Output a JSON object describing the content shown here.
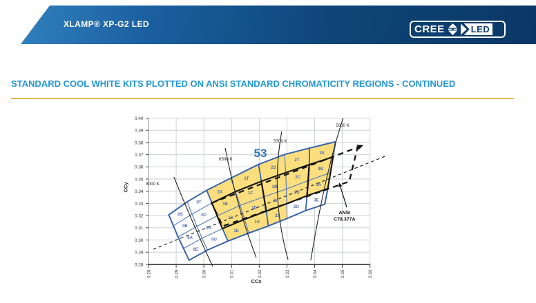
{
  "header": {
    "product": "XLAMP® XP-G2 LED",
    "logo": {
      "cree": "CREE",
      "led": "LED",
      "registered": "®"
    }
  },
  "section": {
    "title": "STANDARD COOL WHITE KITS PLOTTED ON ANSI STANDARD CHROMATICITY REGIONS - CONTINUED"
  },
  "chart_data": {
    "type": "chromaticity-bin-map",
    "xlabel": "CCx",
    "ylabel": "CCy",
    "xlim": [
      0.28,
      0.36
    ],
    "ylim": [
      0.28,
      0.4
    ],
    "xticks": [
      0.28,
      0.29,
      0.3,
      0.31,
      0.32,
      0.33,
      0.34,
      0.35,
      0.36
    ],
    "yticks": [
      0.28,
      0.29,
      0.3,
      0.31,
      0.32,
      0.33,
      0.34,
      0.35,
      0.36,
      0.37,
      0.38,
      0.39,
      0.4
    ],
    "grid": true,
    "kit_label": "53",
    "kit_label_pos": [
      0.3204,
      0.3715
    ],
    "kit_highlight_color": "#FBDE7E",
    "colors": {
      "grid": "#cdd1d6",
      "bin_grid": "#5d7fbe",
      "bin_grid_bold": "#3a64ad",
      "ansi_solid": "#161616",
      "kit_number": "#2e74b8",
      "bin_label": "#4f68a6",
      "title_blue": "#2196d3",
      "gold_rule": "#ddb84a"
    },
    "bin_columns": 7,
    "bin_rows": 4,
    "bins": [
      {
        "code": "0S",
        "ccx": 0.2915,
        "ccy": 0.3212,
        "in_kit": false
      },
      {
        "code": "0B",
        "ccx": 0.2932,
        "ccy": 0.3116,
        "in_kit": false
      },
      {
        "code": "0A",
        "ccx": 0.295,
        "ccy": 0.302,
        "in_kit": false
      },
      {
        "code": "0E",
        "ccx": 0.297,
        "ccy": 0.2924,
        "in_kit": false
      },
      {
        "code": "0T",
        "ccx": 0.2982,
        "ccy": 0.3313,
        "in_kit": false
      },
      {
        "code": "0C",
        "ccx": 0.3,
        "ccy": 0.3206,
        "in_kit": false
      },
      {
        "code": "0D",
        "ccx": 0.3017,
        "ccy": 0.3104,
        "in_kit": false
      },
      {
        "code": "0U",
        "ccx": 0.3037,
        "ccy": 0.3008,
        "in_kit": false
      },
      {
        "code": "1S",
        "ccx": 0.3057,
        "ccy": 0.3398,
        "in_kit": true
      },
      {
        "code": "1B",
        "ccx": 0.3077,
        "ccy": 0.3297,
        "in_kit": true
      },
      {
        "code": "1A",
        "ccx": 0.3097,
        "ccy": 0.3184,
        "in_kit": true
      },
      {
        "code": "1E",
        "ccx": 0.3117,
        "ccy": 0.3076,
        "in_kit": true
      },
      {
        "code": "1T",
        "ccx": 0.3154,
        "ccy": 0.3506,
        "in_kit": true
      },
      {
        "code": "1C",
        "ccx": 0.3169,
        "ccy": 0.3387,
        "in_kit": true
      },
      {
        "code": "1D",
        "ccx": 0.3182,
        "ccy": 0.3268,
        "in_kit": true
      },
      {
        "code": "1U",
        "ccx": 0.3192,
        "ccy": 0.315,
        "in_kit": true
      },
      {
        "code": "2S",
        "ccx": 0.3251,
        "ccy": 0.3596,
        "in_kit": true
      },
      {
        "code": "2B",
        "ccx": 0.3256,
        "ccy": 0.3438,
        "in_kit": true
      },
      {
        "code": "2A",
        "ccx": 0.3261,
        "ccy": 0.3325,
        "in_kit": true
      },
      {
        "code": "2E",
        "ccx": 0.3266,
        "ccy": 0.3201,
        "in_kit": true
      },
      {
        "code": "2T",
        "ccx": 0.3336,
        "ccy": 0.3658,
        "in_kit": true
      },
      {
        "code": "2C",
        "ccx": 0.3339,
        "ccy": 0.3517,
        "in_kit": true
      },
      {
        "code": "2D",
        "ccx": 0.3336,
        "ccy": 0.3393,
        "in_kit": true
      },
      {
        "code": "2U",
        "ccx": 0.3334,
        "ccy": 0.3274,
        "in_kit": false
      },
      {
        "code": "3S",
        "ccx": 0.3426,
        "ccy": 0.3715,
        "in_kit": true
      },
      {
        "code": "3B",
        "ccx": 0.3421,
        "ccy": 0.3585,
        "in_kit": true
      },
      {
        "code": "3A",
        "ccx": 0.3414,
        "ccy": 0.3455,
        "in_kit": true
      },
      {
        "code": "3E",
        "ccx": 0.3406,
        "ccy": 0.333,
        "in_kit": false
      }
    ],
    "ansi_region": {
      "label_lines": [
        "ANSI",
        "C78.377A"
      ],
      "label_pos": [
        0.3508,
        0.323
      ],
      "corners_ccxy": [
        [
          0.3028,
          0.3304
        ],
        [
          0.3555,
          0.376
        ],
        [
          0.3525,
          0.348
        ],
        [
          0.3068,
          0.3113
        ]
      ],
      "arrow": {
        "from": [
          0.3516,
          0.3268
        ],
        "to": [
          0.3493,
          0.3438
        ]
      }
    },
    "ansi_bin_outline_column_ranges": [
      [
        2,
        4
      ],
      [
        4,
        6
      ],
      [
        6,
        7
      ]
    ],
    "cct_lines": [
      {
        "label": "8000 K",
        "label_pos": [
          0.2815,
          0.346
        ],
        "points": [
          [
            0.2892,
            0.3517
          ],
          [
            0.2957,
            0.3161
          ],
          [
            0.3032,
            0.2783
          ]
        ]
      },
      {
        "label": "6500 K",
        "label_pos": [
          0.3079,
          0.3664
        ],
        "points": [
          [
            0.3077,
            0.3754
          ],
          [
            0.3124,
            0.3302
          ],
          [
            0.3189,
            0.2856
          ]
        ]
      },
      {
        "label": "5700 K",
        "label_pos": [
          0.3276,
          0.3811
        ],
        "points": [
          [
            0.3281,
            0.389
          ],
          [
            0.3266,
            0.3365
          ],
          [
            0.3304,
            0.2839
          ]
        ]
      },
      {
        "label": "5000 K",
        "label_pos": [
          0.3501,
          0.3941
        ],
        "points": [
          [
            0.3503,
            0.4
          ],
          [
            0.3441,
            0.3483
          ],
          [
            0.3386,
            0.2833
          ]
        ]
      }
    ],
    "planckian_locus": {
      "style": "dashed",
      "points": [
        [
          0.2817,
          0.2924
        ],
        [
          0.366,
          0.3692
        ]
      ]
    }
  }
}
